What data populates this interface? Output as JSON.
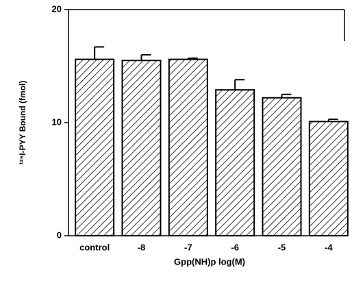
{
  "chart_data": {
    "type": "bar",
    "x_label": "Gpp(NH)p log(M)",
    "y_label": "¹²⁵I-PYY Bound (fmol)",
    "categories": [
      "control",
      "-8",
      "-7",
      "-6",
      "-5",
      "-4"
    ],
    "values": [
      15.6,
      15.5,
      15.6,
      12.9,
      12.2,
      10.1
    ],
    "errors": [
      1.1,
      0.5,
      0.1,
      0.9,
      0.3,
      0.2
    ],
    "color": "#000000",
    "ylim": [
      0,
      20
    ],
    "yticks": [
      0,
      10,
      20
    ]
  }
}
